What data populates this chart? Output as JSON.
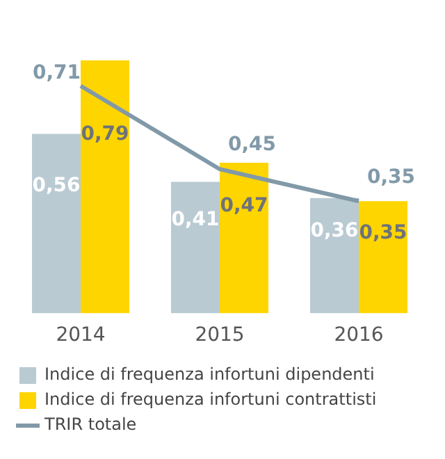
{
  "chart_data": {
    "type": "bar",
    "categories": [
      "2014",
      "2015",
      "2016"
    ],
    "series": [
      {
        "name": "Indice di frequenza infortuni dipendenti",
        "color": "#b9cad3",
        "values": [
          0.56,
          0.41,
          0.36
        ],
        "value_labels": [
          "0,56",
          "0,41",
          "0,36"
        ]
      },
      {
        "name": "Indice di frequenza infortuni contrattisti",
        "color": "#ffd500",
        "values": [
          0.79,
          0.47,
          0.35
        ],
        "value_labels": [
          "0,79",
          "0,47",
          "0,35"
        ]
      },
      {
        "name": "TRIR totale",
        "type": "line",
        "color": "#8199a8",
        "values": [
          0.71,
          0.45,
          0.35
        ],
        "value_labels": [
          "0,71",
          "0,45",
          "0,35"
        ]
      }
    ],
    "legend": "bottom",
    "grid": false,
    "marker": "none",
    "line_style": "solid"
  }
}
